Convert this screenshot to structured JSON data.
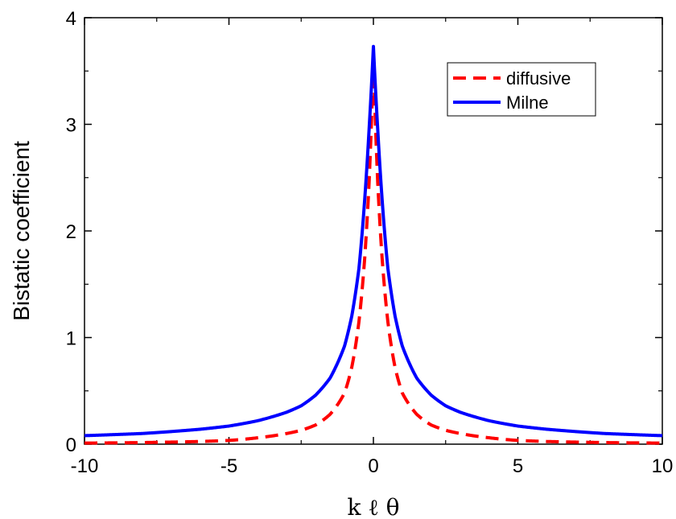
{
  "chart_data": {
    "type": "line",
    "title": "",
    "xlabel": "k ℓ θ",
    "ylabel": "Bistatic coefficient",
    "xlim": [
      -10,
      10
    ],
    "ylim": [
      0,
      4
    ],
    "x_ticks": [
      -10,
      -5,
      0,
      5,
      10
    ],
    "y_ticks": [
      0,
      1,
      2,
      3,
      4
    ],
    "x_tick_labels": [
      "-10",
      "-5",
      "0",
      "5",
      "10"
    ],
    "y_tick_labels": [
      "0",
      "1",
      "2",
      "3",
      "4"
    ],
    "grid": false,
    "legend_position": "top-right",
    "series": [
      {
        "name": "diffusive",
        "color": "#ff0000",
        "style": "dashed",
        "x": [
          -10,
          -8,
          -6,
          -5,
          -4,
          -3,
          -2.5,
          -2,
          -1.5,
          -1,
          -0.75,
          -0.5,
          -0.3,
          -0.15,
          0,
          0.15,
          0.3,
          0.5,
          0.75,
          1,
          1.5,
          2,
          2.5,
          3,
          4,
          5,
          6,
          8,
          10
        ],
        "y": [
          0.01,
          0.015,
          0.025,
          0.035,
          0.06,
          0.1,
          0.13,
          0.18,
          0.28,
          0.48,
          0.72,
          1.15,
          1.75,
          2.45,
          3.6,
          2.45,
          1.75,
          1.15,
          0.72,
          0.48,
          0.28,
          0.18,
          0.13,
          0.1,
          0.06,
          0.035,
          0.025,
          0.015,
          0.01
        ]
      },
      {
        "name": "Milne",
        "color": "#0000ff",
        "style": "solid",
        "x": [
          -10,
          -8,
          -6,
          -5,
          -4,
          -3,
          -2.5,
          -2,
          -1.5,
          -1,
          -0.75,
          -0.5,
          -0.3,
          -0.15,
          0,
          0.15,
          0.3,
          0.5,
          0.75,
          1,
          1.5,
          2,
          2.5,
          3,
          4,
          5,
          6,
          8,
          10
        ],
        "y": [
          0.08,
          0.1,
          0.14,
          0.17,
          0.22,
          0.3,
          0.36,
          0.46,
          0.62,
          0.92,
          1.2,
          1.65,
          2.3,
          2.95,
          3.73,
          2.95,
          2.3,
          1.65,
          1.2,
          0.92,
          0.62,
          0.46,
          0.36,
          0.3,
          0.22,
          0.17,
          0.14,
          0.1,
          0.08
        ]
      }
    ]
  }
}
